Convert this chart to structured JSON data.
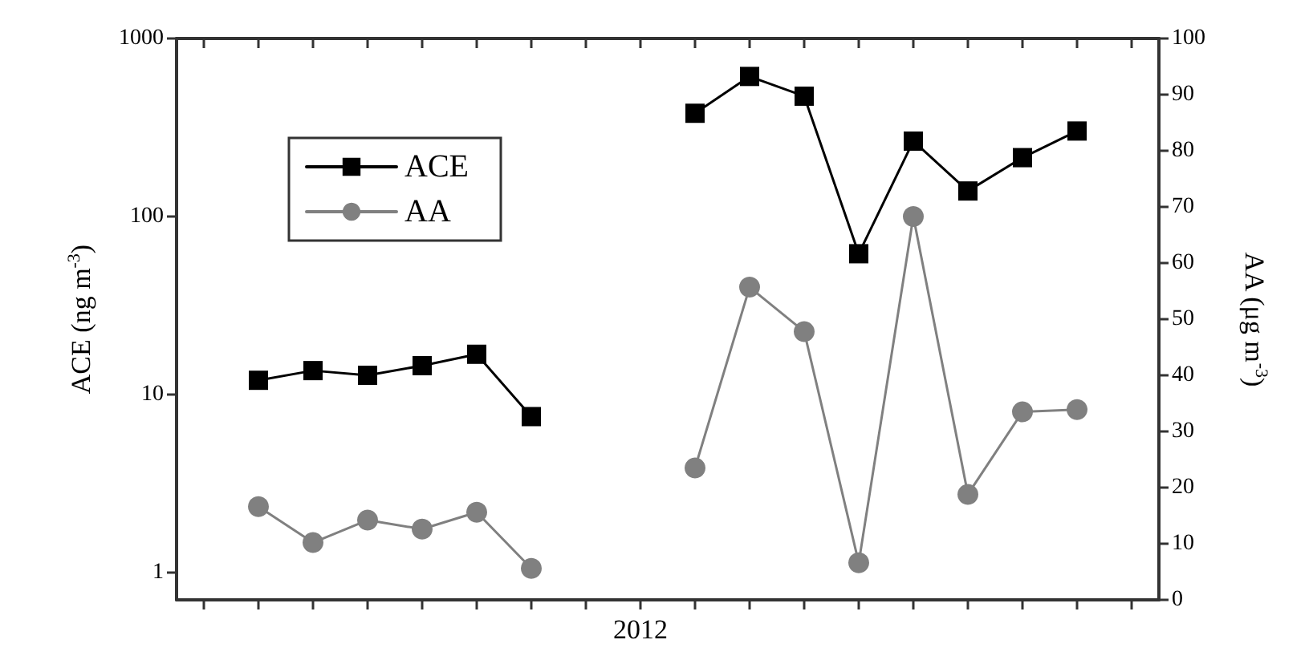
{
  "chart_data": {
    "type": "line",
    "categories": [
      null,
      null,
      null,
      null,
      null,
      null,
      null,
      null,
      "2012",
      null,
      null,
      null,
      null,
      null,
      null,
      null,
      null,
      null
    ],
    "ylabel": "ACE (ng m$^{-3}$)",
    "y2label": "AA (μg m$^{-3}$)",
    "log": "y",
    "ylim": [
      0.7,
      1000
    ],
    "yticks": [
      1,
      10,
      100,
      1000
    ],
    "y2lim": [
      0,
      100
    ],
    "y2ticks": [
      0,
      10,
      20,
      30,
      40,
      50,
      60,
      70,
      80,
      90,
      100
    ],
    "grid": false,
    "legend": "top left",
    "line_style": "solid",
    "series": [
      {
        "name": "ACE",
        "color": "#000000",
        "marker": "square",
        "values": [
          null,
          12.0,
          13.6,
          12.8,
          14.5,
          16.8,
          7.5,
          null,
          null,
          380,
          612,
          474,
          61.7,
          265,
          139,
          214,
          302,
          null
        ]
      },
      {
        "name": "AA",
        "color": "#808080",
        "marker": "circle",
        "axis": "y2",
        "values": [
          null,
          16.6,
          10.2,
          14.2,
          12.6,
          15.6,
          5.6,
          null,
          null,
          23.5,
          55.7,
          47.8,
          6.6,
          68.3,
          18.8,
          33.5,
          33.9,
          null
        ]
      }
    ]
  }
}
